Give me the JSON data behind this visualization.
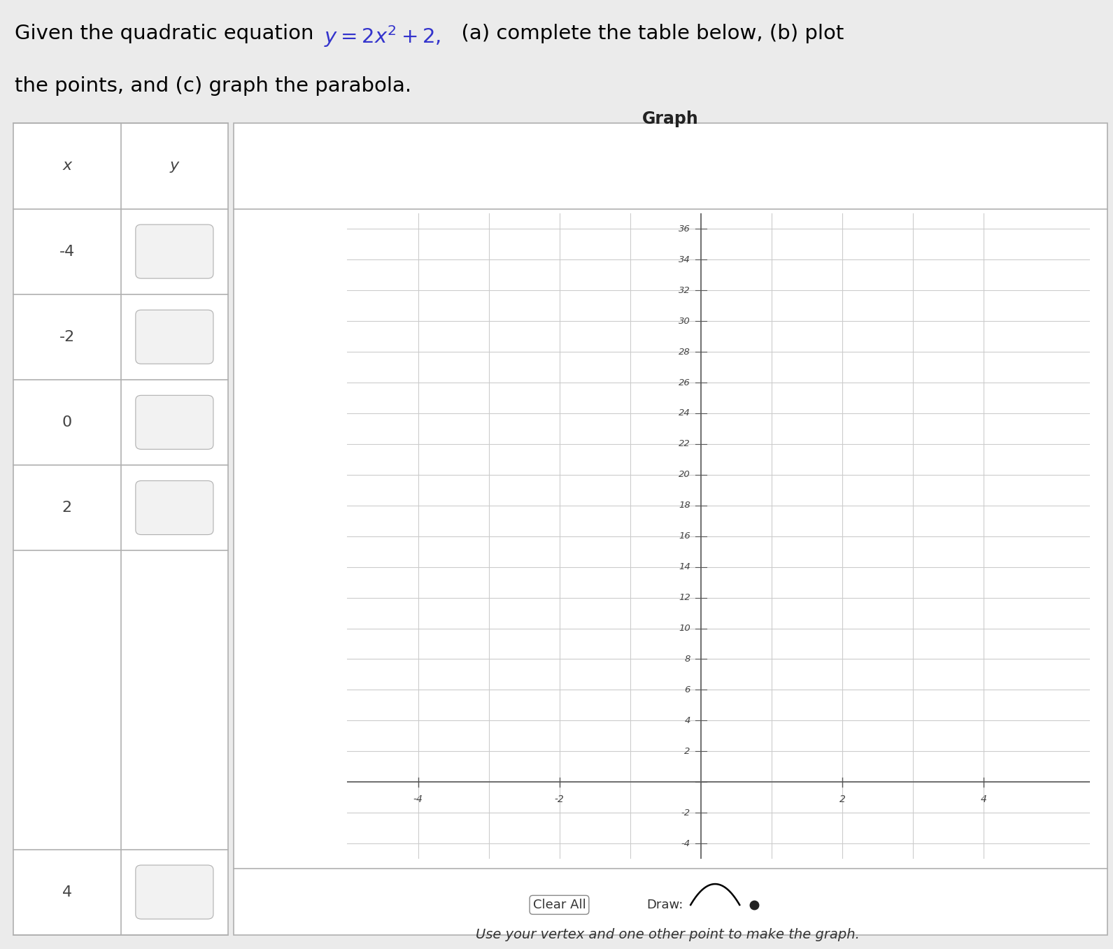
{
  "table_x_values": [
    "-4",
    "-2",
    "0",
    "2",
    "4"
  ],
  "table_header_x": "x",
  "table_header_y": "y",
  "graph_title": "Graph",
  "x_ticks": [
    -4,
    -2,
    2,
    4
  ],
  "y_ticks_pos": [
    2,
    4,
    6,
    8,
    10,
    12,
    14,
    16,
    18,
    20,
    22,
    24,
    26,
    28,
    30,
    32,
    34,
    36
  ],
  "y_ticks_neg": [
    -2,
    -4
  ],
  "x_min": -5,
  "x_max": 5,
  "y_min": -5,
  "y_max": 38,
  "bg_color": "#ebebeb",
  "cell_bg": "#ffffff",
  "input_box_color": "#e8e8e8",
  "grid_color": "#cccccc",
  "axis_color": "#555555",
  "text_color": "#444444",
  "title_color": "#000000",
  "equation_color": "#3333cc",
  "bottom_text": "Use your vertex and one other point to make the graph.",
  "clear_all_text": "Clear All",
  "draw_text": "Draw:",
  "button_color": "#f0f0f0",
  "button_border": "#999999",
  "title_plain1": "Given the quadratic equation  ",
  "title_eq": "$y = 2x^2 + 2$,",
  "title_plain2": "  (a) complete the table below, (b) plot",
  "title_line2": "the points, and (c) graph the parabola."
}
